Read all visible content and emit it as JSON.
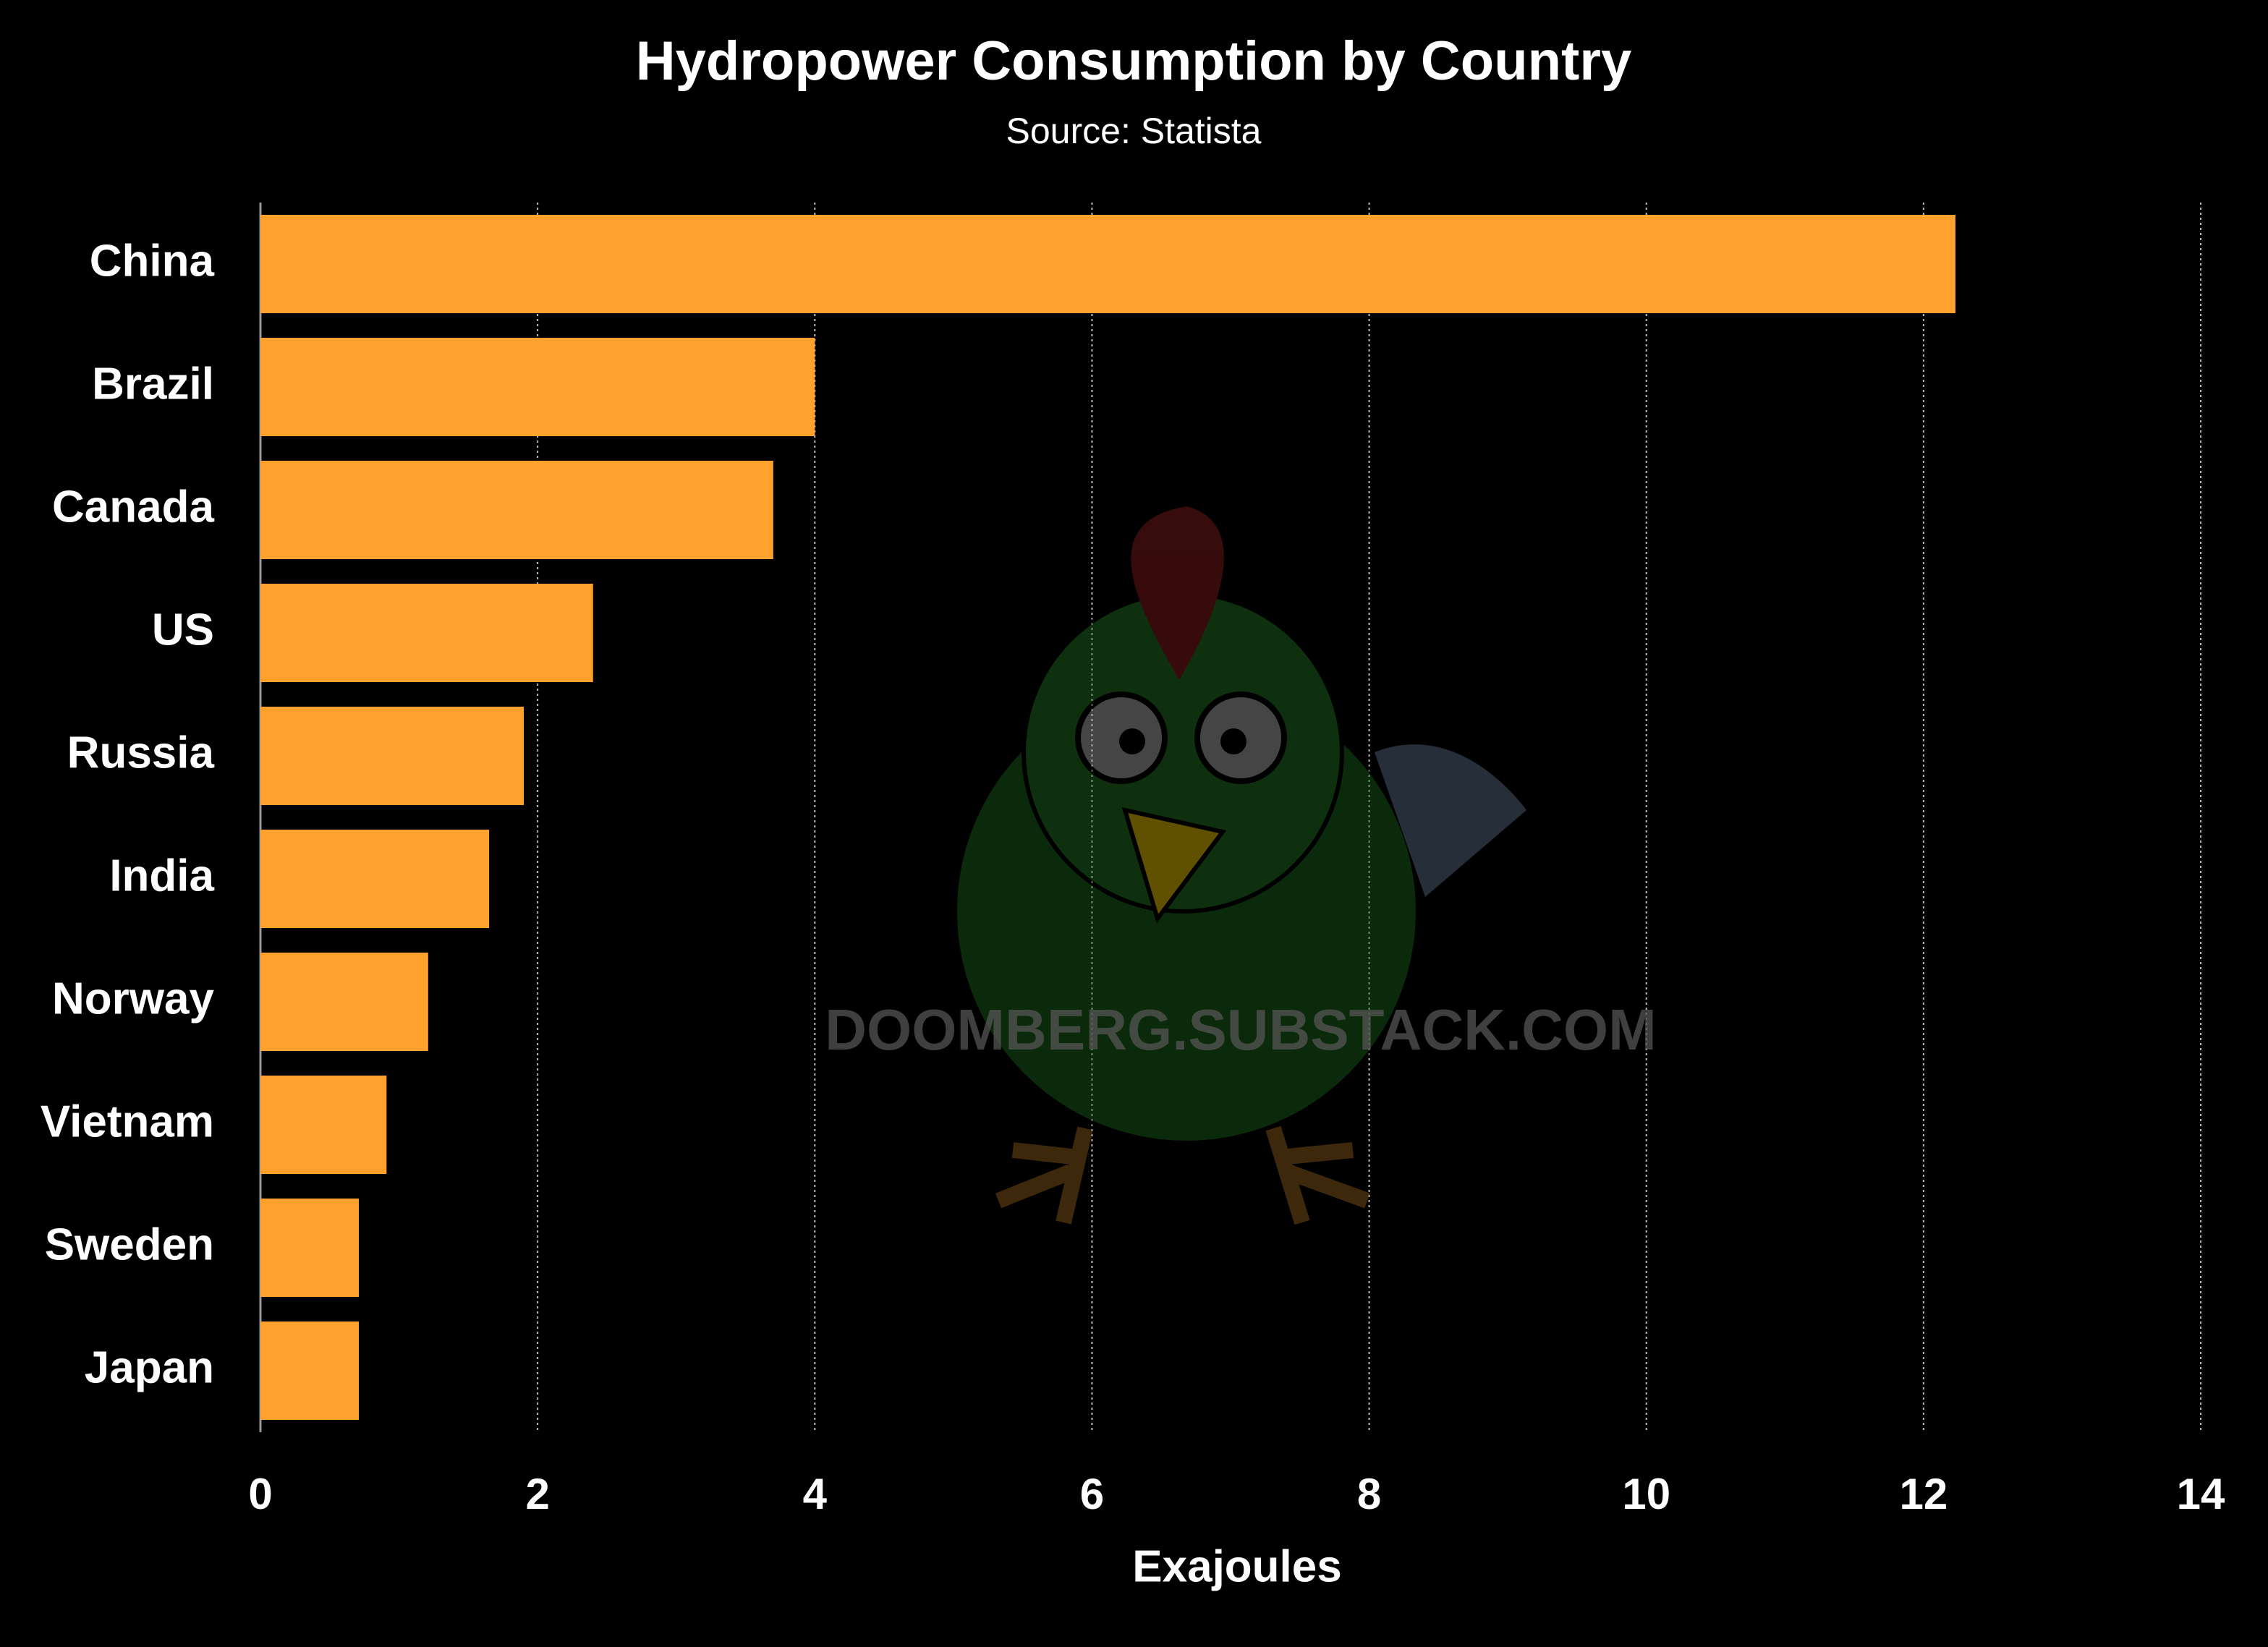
{
  "chart_data": {
    "type": "bar",
    "orientation": "horizontal",
    "title": "Hydropower Consumption by Country",
    "subtitle": "Source: Statista",
    "x_label": "Exajoules",
    "watermark": "DOOMBERG.SUBSTACK.COM",
    "categories": [
      "China",
      "Brazil",
      "Canada",
      "US",
      "Russia",
      "India",
      "Norway",
      "Vietnam",
      "Sweden",
      "Japan"
    ],
    "values": [
      12.23,
      4.0,
      3.7,
      2.4,
      1.9,
      1.65,
      1.21,
      0.91,
      0.71,
      0.71
    ],
    "color": "#ffa12d",
    "xlim": [
      0,
      14
    ],
    "xticks": [
      0,
      2,
      4,
      6,
      8,
      10,
      12,
      14
    ],
    "grid": true
  }
}
